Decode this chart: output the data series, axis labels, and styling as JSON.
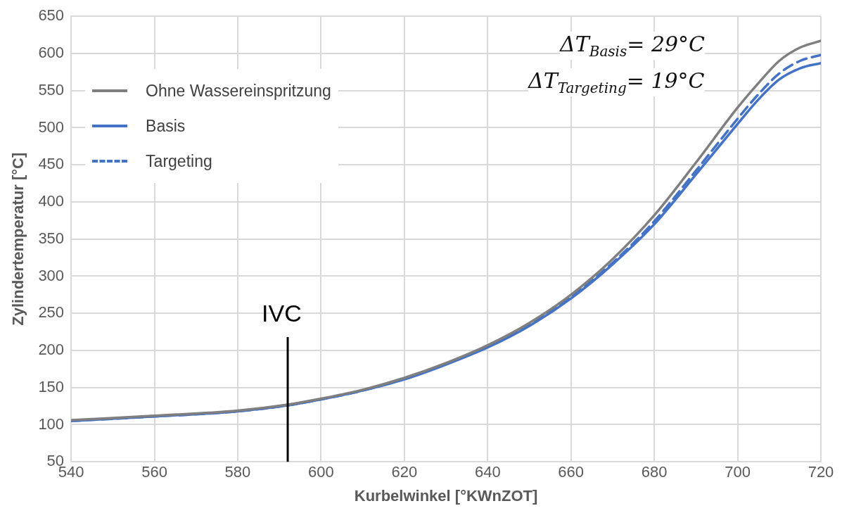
{
  "chart_data": {
    "type": "line",
    "xlabel": "Kurbelwinkel [°KWnZOT]",
    "ylabel": "Zylindertemperatur [°C]",
    "xlim": [
      540,
      720
    ],
    "xticks": [
      540,
      560,
      580,
      600,
      620,
      640,
      660,
      680,
      700,
      720
    ],
    "ylim": [
      50,
      650
    ],
    "yticks": [
      50,
      100,
      150,
      200,
      250,
      300,
      350,
      400,
      450,
      500,
      550,
      600,
      650
    ],
    "grid": true,
    "legend": "top left",
    "marker": "none",
    "series": [
      {
        "name": "Ohne Wassereinspritzung",
        "color": "#7f7f7f",
        "line_style": "solid",
        "x": [
          540,
          560,
          580,
          592,
          600,
          610,
          620,
          630,
          640,
          650,
          660,
          670,
          680,
          690,
          700,
          705,
          710,
          715,
          720
        ],
        "values": [
          106,
          112,
          119,
          127,
          135,
          147,
          163,
          183,
          207,
          237,
          275,
          323,
          382,
          453,
          527,
          560,
          590,
          608,
          617
        ]
      },
      {
        "name": "Basis",
        "color": "#4472c4",
        "line_style": "solid",
        "x": [
          540,
          560,
          580,
          592,
          600,
          610,
          620,
          630,
          640,
          650,
          660,
          670,
          680,
          690,
          700,
          705,
          710,
          715,
          720
        ],
        "values": [
          105,
          111,
          118,
          126,
          134,
          146,
          161,
          181,
          204,
          233,
          270,
          316,
          370,
          437,
          505,
          538,
          565,
          580,
          587
        ]
      },
      {
        "name": "Targeting",
        "color": "#4472c4",
        "line_style": "dashed",
        "x": [
          540,
          560,
          580,
          592,
          600,
          610,
          620,
          630,
          640,
          650,
          660,
          670,
          680,
          690,
          700,
          705,
          710,
          715,
          720
        ],
        "values": [
          105,
          111,
          118,
          126,
          134,
          146,
          162,
          182,
          205,
          234,
          272,
          318,
          374,
          442,
          512,
          545,
          573,
          590,
          598
        ]
      }
    ],
    "ref_lines": [
      {
        "axis": "x",
        "value": 592,
        "label": "IVC",
        "color": "#000000"
      }
    ],
    "annotations": [
      "ΔT$_{Basis}$= 29°C",
      "ΔT$_{Targeting}$= 19°C"
    ]
  }
}
